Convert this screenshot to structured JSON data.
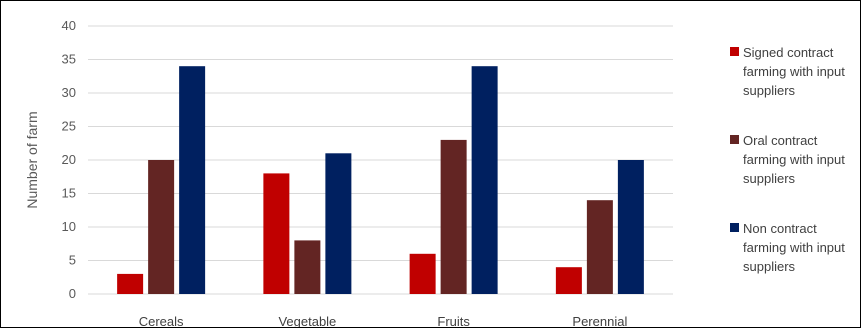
{
  "chart_data": {
    "type": "bar",
    "categories": [
      "Cereals",
      "Vegetable",
      "Fruits",
      "Perennial"
    ],
    "series": [
      {
        "name": "Signed contract farming with input suppliers",
        "color": "#c00000",
        "values": [
          3,
          18,
          6,
          4
        ]
      },
      {
        "name": "Oral contract farming with input suppliers",
        "color": "#632523",
        "values": [
          20,
          8,
          23,
          14
        ]
      },
      {
        "name": "Non contract farming with input suppliers",
        "color": "#002060",
        "values": [
          34,
          21,
          34,
          20
        ]
      }
    ],
    "title": "",
    "xlabel": "",
    "ylabel": "Number of farm",
    "ylim": [
      0,
      40
    ],
    "yticks": [
      0,
      5,
      10,
      15,
      20,
      25,
      30,
      35,
      40
    ],
    "grid": true,
    "legend_position": "right"
  }
}
